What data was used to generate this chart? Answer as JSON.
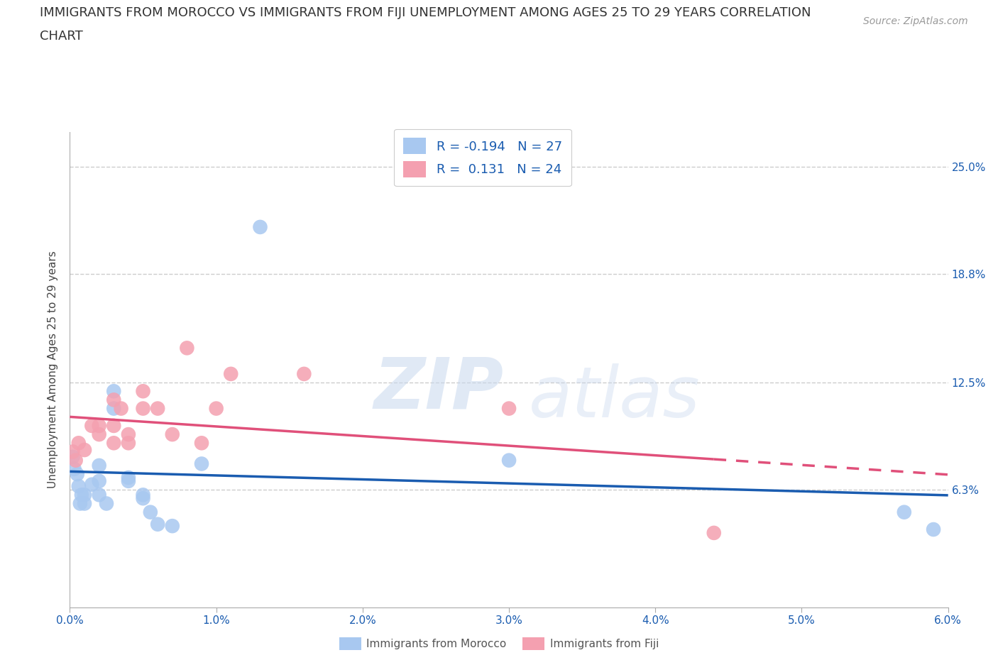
{
  "title_line1": "IMMIGRANTS FROM MOROCCO VS IMMIGRANTS FROM FIJI UNEMPLOYMENT AMONG AGES 25 TO 29 YEARS CORRELATION",
  "title_line2": "CHART",
  "source": "Source: ZipAtlas.com",
  "ylabel": "Unemployment Among Ages 25 to 29 years",
  "xlabel": "",
  "xlim": [
    0.0,
    0.06
  ],
  "ylim": [
    -0.005,
    0.27
  ],
  "yticks": [
    0.063,
    0.125,
    0.188,
    0.25
  ],
  "ytick_labels": [
    "6.3%",
    "12.5%",
    "18.8%",
    "25.0%"
  ],
  "xticks": [
    0.0,
    0.01,
    0.02,
    0.03,
    0.04,
    0.05,
    0.06
  ],
  "xtick_labels": [
    "0.0%",
    "1.0%",
    "2.0%",
    "3.0%",
    "4.0%",
    "5.0%",
    "6.0%"
  ],
  "morocco_color": "#a8c8f0",
  "fiji_color": "#f4a0b0",
  "morocco_line_color": "#1a5cb0",
  "fiji_line_color": "#e0507a",
  "legend_label_morocco": "Immigrants from Morocco",
  "legend_label_fiji": "Immigrants from Fiji",
  "morocco_R": -0.194,
  "morocco_N": 27,
  "fiji_R": 0.131,
  "fiji_N": 24,
  "watermark_zip": "ZIP",
  "watermark_atlas": "atlas",
  "morocco_x": [
    0.0002,
    0.0003,
    0.0005,
    0.0006,
    0.0007,
    0.0008,
    0.001,
    0.001,
    0.0015,
    0.002,
    0.002,
    0.002,
    0.0025,
    0.003,
    0.003,
    0.004,
    0.004,
    0.005,
    0.005,
    0.0055,
    0.006,
    0.007,
    0.009,
    0.013,
    0.03,
    0.057,
    0.059
  ],
  "morocco_y": [
    0.082,
    0.075,
    0.072,
    0.065,
    0.055,
    0.06,
    0.055,
    0.06,
    0.066,
    0.068,
    0.06,
    0.077,
    0.055,
    0.12,
    0.11,
    0.068,
    0.07,
    0.058,
    0.06,
    0.05,
    0.043,
    0.042,
    0.078,
    0.215,
    0.08,
    0.05,
    0.04
  ],
  "fiji_x": [
    0.0002,
    0.0004,
    0.0006,
    0.001,
    0.0015,
    0.002,
    0.002,
    0.003,
    0.003,
    0.003,
    0.0035,
    0.004,
    0.004,
    0.005,
    0.005,
    0.006,
    0.007,
    0.008,
    0.009,
    0.01,
    0.011,
    0.016,
    0.03,
    0.044
  ],
  "fiji_y": [
    0.085,
    0.08,
    0.09,
    0.086,
    0.1,
    0.095,
    0.1,
    0.09,
    0.1,
    0.115,
    0.11,
    0.09,
    0.095,
    0.11,
    0.12,
    0.11,
    0.095,
    0.145,
    0.09,
    0.11,
    0.13,
    0.13,
    0.11,
    0.038
  ]
}
